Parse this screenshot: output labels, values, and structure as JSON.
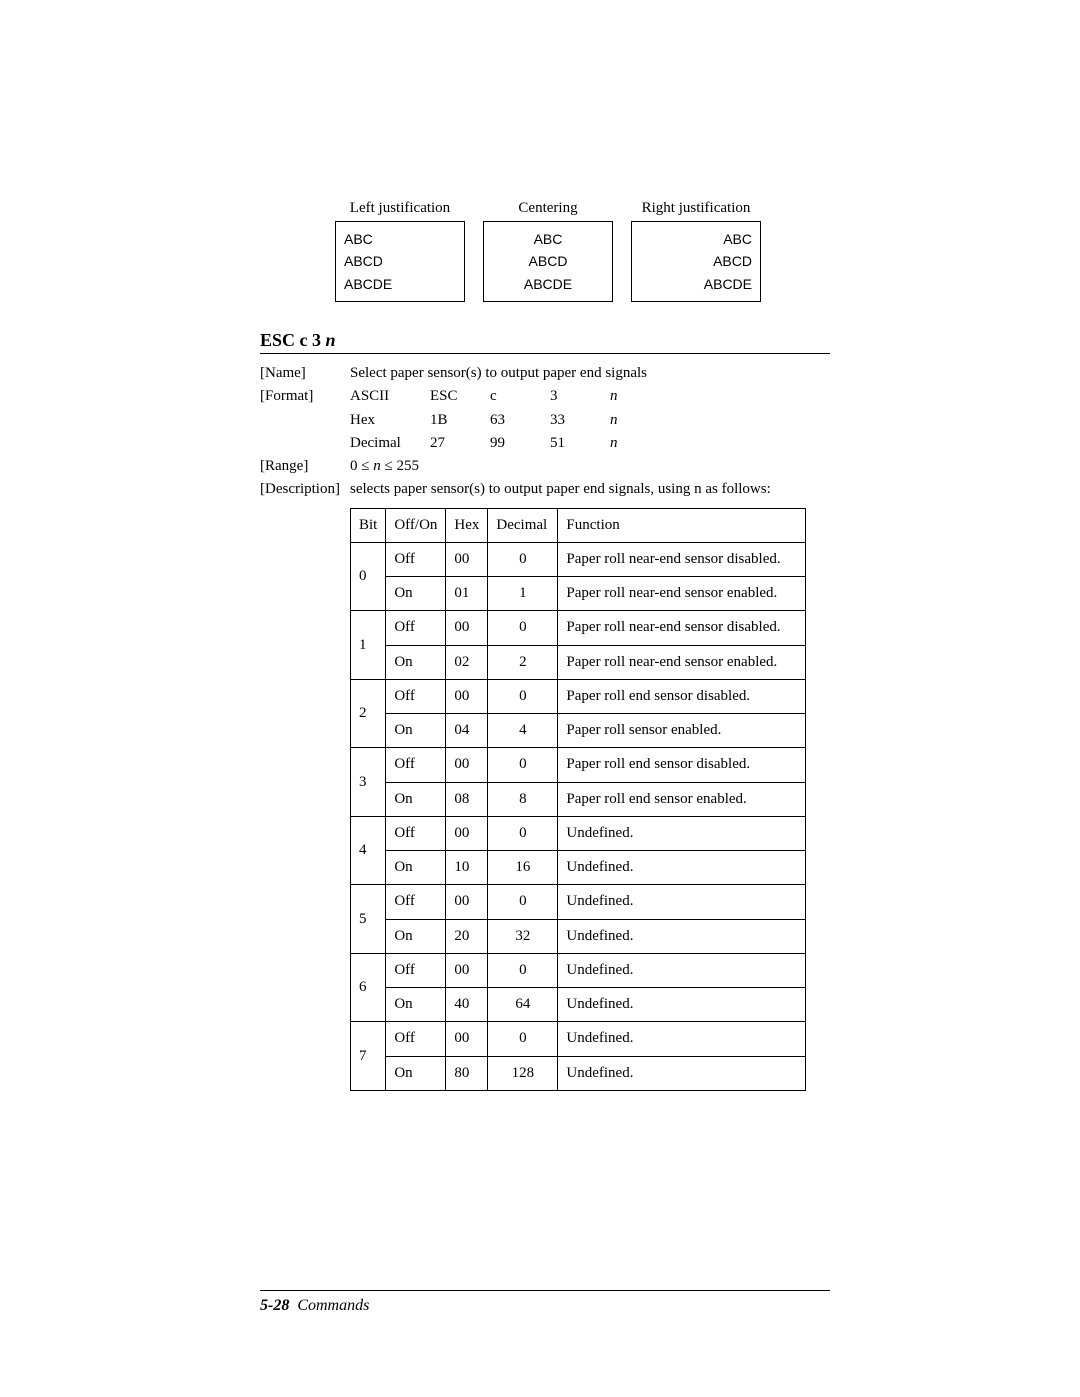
{
  "justification": {
    "examples": [
      {
        "label": "Left justification",
        "align": "left",
        "lines": [
          "ABC",
          "ABCD",
          "ABCDE"
        ]
      },
      {
        "label": "Centering",
        "align": "center",
        "lines": [
          "ABC",
          "ABCD",
          "ABCDE"
        ]
      },
      {
        "label": "Right justification",
        "align": "right",
        "lines": [
          "ABC",
          "ABCD",
          "ABCDE"
        ]
      }
    ]
  },
  "command": {
    "title_prefix": "ESC c 3 ",
    "title_param": "n",
    "name_label": "[Name]",
    "name_text": "Select paper sensor(s) to output paper end signals",
    "format_label": "[Format]",
    "format_rows": [
      {
        "c0": "ASCII",
        "c1": "ESC",
        "c2": "c",
        "c3": "3",
        "c4": "n",
        "c4_italic": true
      },
      {
        "c0": "Hex",
        "c1": "1B",
        "c2": "63",
        "c3": "33",
        "c4": "n",
        "c4_italic": true
      },
      {
        "c0": "Decimal",
        "c1": "27",
        "c2": "99",
        "c3": "51",
        "c4": "n",
        "c4_italic": true
      }
    ],
    "range_label": "[Range]",
    "range_text": "0 ≤ n ≤ 255",
    "desc_label": "[Description]",
    "desc_text": "selects paper sensor(s) to output paper end signals, using n as follows:"
  },
  "bit_table": {
    "headers": {
      "bit": "Bit",
      "offon": "Off/On",
      "hex": "Hex",
      "dec": "Decimal",
      "fn": "Function"
    },
    "rows": [
      {
        "bit": "0",
        "off": {
          "offon": "Off",
          "hex": "00",
          "dec": "0",
          "fn": "Paper roll near-end sensor disabled."
        },
        "on": {
          "offon": "On",
          "hex": "01",
          "dec": "1",
          "fn": "Paper roll near-end sensor enabled."
        }
      },
      {
        "bit": "1",
        "off": {
          "offon": "Off",
          "hex": "00",
          "dec": "0",
          "fn": "Paper roll near-end sensor disabled."
        },
        "on": {
          "offon": "On",
          "hex": "02",
          "dec": "2",
          "fn": "Paper roll near-end sensor enabled."
        }
      },
      {
        "bit": "2",
        "off": {
          "offon": "Off",
          "hex": "00",
          "dec": "0",
          "fn": "Paper roll end sensor disabled."
        },
        "on": {
          "offon": "On",
          "hex": "04",
          "dec": "4",
          "fn": "Paper roll sensor enabled."
        }
      },
      {
        "bit": "3",
        "off": {
          "offon": "Off",
          "hex": "00",
          "dec": "0",
          "fn": "Paper roll end sensor disabled."
        },
        "on": {
          "offon": "On",
          "hex": "08",
          "dec": "8",
          "fn": "Paper roll end sensor enabled."
        }
      },
      {
        "bit": "4",
        "off": {
          "offon": "Off",
          "hex": "00",
          "dec": "0",
          "fn": "Undefined."
        },
        "on": {
          "offon": "On",
          "hex": "10",
          "dec": "16",
          "fn": "Undefined."
        }
      },
      {
        "bit": "5",
        "off": {
          "offon": "Off",
          "hex": "00",
          "dec": "0",
          "fn": "Undefined."
        },
        "on": {
          "offon": "On",
          "hex": "20",
          "dec": "32",
          "fn": "Undefined."
        }
      },
      {
        "bit": "6",
        "off": {
          "offon": "Off",
          "hex": "00",
          "dec": "0",
          "fn": "Undefined."
        },
        "on": {
          "offon": "On",
          "hex": "40",
          "dec": "64",
          "fn": "Undefined."
        }
      },
      {
        "bit": "7",
        "off": {
          "offon": "Off",
          "hex": "00",
          "dec": "0",
          "fn": "Undefined."
        },
        "on": {
          "offon": "On",
          "hex": "80",
          "dec": "128",
          "fn": "Undefined."
        }
      }
    ]
  },
  "footer": {
    "page": "5-28",
    "section": "Commands"
  },
  "colors": {
    "text": "#000000",
    "bg": "#ffffff",
    "rule": "#000000"
  }
}
